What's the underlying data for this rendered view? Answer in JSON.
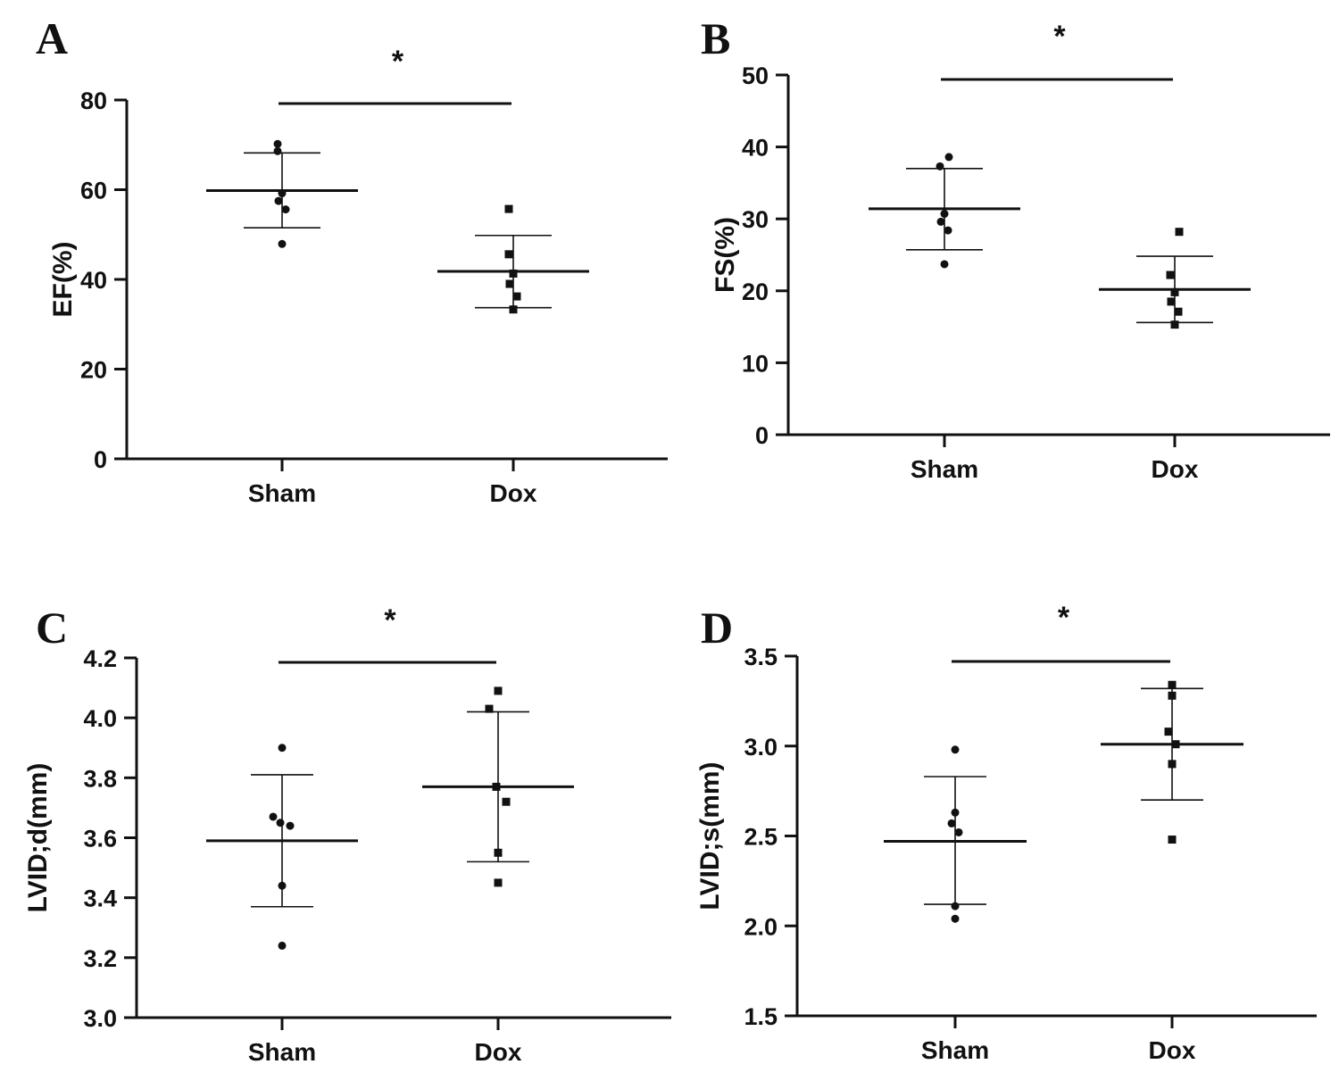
{
  "chart_data": [
    {
      "type": "scatter",
      "panel_label": "A",
      "ylabel": "EF(%)",
      "categories": [
        "Sham",
        "Dox"
      ],
      "ylim": [
        0,
        80
      ],
      "yticks": [
        0,
        20,
        40,
        60,
        80
      ],
      "ytick_labels": [
        "0",
        "20",
        "40",
        "60",
        "80"
      ],
      "series": [
        {
          "name": "Sham",
          "marker": "circle",
          "values": [
            70.2,
            68.6,
            59.2,
            57.5,
            55.6,
            47.9
          ],
          "mean": 59.8,
          "sd_upper": 68.2,
          "sd_lower": 51.5
        },
        {
          "name": "Dox",
          "marker": "square",
          "values": [
            55.7,
            45.6,
            41.3,
            39.0,
            36.2,
            33.3
          ],
          "mean": 41.8,
          "sd_upper": 49.8,
          "sd_lower": 33.7
        }
      ],
      "significance": "*"
    },
    {
      "type": "scatter",
      "panel_label": "B",
      "ylabel": "FS(%)",
      "categories": [
        "Sham",
        "Dox"
      ],
      "ylim": [
        0,
        50
      ],
      "yticks": [
        0,
        10,
        20,
        30,
        40,
        50
      ],
      "ytick_labels": [
        "0",
        "10",
        "20",
        "30",
        "40",
        "50"
      ],
      "series": [
        {
          "name": "Sham",
          "marker": "circle",
          "values": [
            38.6,
            37.3,
            30.7,
            29.6,
            28.4,
            23.7
          ],
          "mean": 31.4,
          "sd_upper": 37.0,
          "sd_lower": 25.7
        },
        {
          "name": "Dox",
          "marker": "square",
          "values": [
            28.2,
            22.2,
            19.8,
            18.5,
            17.1,
            15.3
          ],
          "mean": 20.2,
          "sd_upper": 24.8,
          "sd_lower": 15.6
        },
        {
          "name": "_placeholder",
          "marker": "none",
          "values": []
        }
      ],
      "significance": "*"
    },
    {
      "type": "scatter",
      "panel_label": "C",
      "ylabel": "LVID;d(mm)",
      "categories": [
        "Sham",
        "Dox"
      ],
      "ylim": [
        3.0,
        4.2
      ],
      "yticks": [
        3.0,
        3.2,
        3.4,
        3.6,
        3.8,
        4.0,
        4.2
      ],
      "ytick_labels": [
        "3.0",
        "3.2",
        "3.4",
        "3.6",
        "3.8",
        "4.0",
        "4.2"
      ],
      "series": [
        {
          "name": "Sham",
          "marker": "circle",
          "values": [
            3.9,
            3.67,
            3.65,
            3.64,
            3.44,
            3.24
          ],
          "mean": 3.59,
          "sd_upper": 3.81,
          "sd_lower": 3.37
        },
        {
          "name": "Dox",
          "marker": "square",
          "values": [
            4.09,
            4.03,
            3.77,
            3.72,
            3.55,
            3.45
          ],
          "mean": 3.77,
          "sd_upper": 4.02,
          "sd_lower": 3.52
        }
      ],
      "significance": "*"
    },
    {
      "type": "scatter",
      "panel_label": "D",
      "ylabel": "LVID;s(mm)",
      "categories": [
        "Sham",
        "Dox"
      ],
      "ylim": [
        1.5,
        3.5
      ],
      "yticks": [
        1.5,
        2.0,
        2.5,
        3.0,
        3.5
      ],
      "ytick_labels": [
        "1.5",
        "2.0",
        "2.5",
        "3.0",
        "3.5"
      ],
      "series": [
        {
          "name": "Sham",
          "marker": "circle",
          "values": [
            2.98,
            2.63,
            2.57,
            2.52,
            2.11,
            2.04
          ],
          "mean": 2.47,
          "sd_upper": 2.83,
          "sd_lower": 2.12
        },
        {
          "name": "Dox",
          "marker": "square",
          "values": [
            3.34,
            3.28,
            3.08,
            3.01,
            2.9,
            2.48
          ],
          "mean": 3.01,
          "sd_upper": 3.32,
          "sd_lower": 2.7
        }
      ],
      "significance": "*"
    }
  ]
}
